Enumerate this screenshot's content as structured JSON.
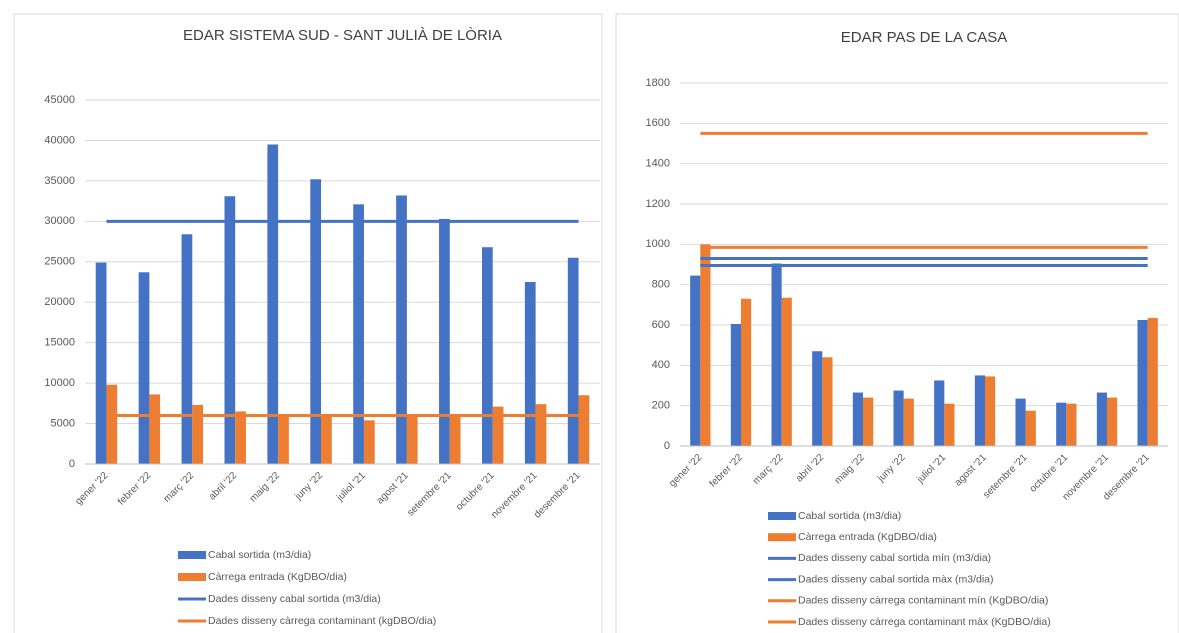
{
  "chart_data": [
    {
      "type": "bar",
      "title": "EDAR SISTEMA SUD - SANT JULIÀ DE LÒRIA",
      "categories": [
        "gener '22",
        "febrer '22",
        "març '22",
        "abril '22",
        "maig '22",
        "juny '22",
        "juliol '21",
        "agost '21",
        "setembre '21",
        "octubre '21",
        "novembre '21",
        "desembre '21"
      ],
      "series": [
        {
          "name": "Cabal sortida (m3/dia)",
          "kind": "bar",
          "color": "#4472c4",
          "values": [
            24900,
            23700,
            28400,
            33100,
            39500,
            35200,
            32100,
            33200,
            30300,
            26800,
            22500,
            25500
          ]
        },
        {
          "name": "Càrrega entrada (KgDBO/dia)",
          "kind": "bar",
          "color": "#ed7d31",
          "values": [
            9800,
            8600,
            7300,
            6500,
            6000,
            6000,
            5400,
            6000,
            6000,
            7100,
            7400,
            8500
          ]
        },
        {
          "name": "Dades disseny cabal sortida (m3/dia)",
          "kind": "line",
          "color": "#4472c4",
          "values": [
            30000,
            30000,
            30000,
            30000,
            30000,
            30000,
            30000,
            30000,
            30000,
            30000,
            30000,
            30000
          ]
        },
        {
          "name": "Dades disseny càrrega contaminant (kgDBO/dia)",
          "kind": "line",
          "color": "#ed7d31",
          "values": [
            6000,
            6000,
            6000,
            6000,
            6000,
            6000,
            6000,
            6000,
            6000,
            6000,
            6000,
            6000
          ]
        }
      ],
      "ylim": [
        0,
        45000
      ],
      "yticks": [
        0,
        5000,
        10000,
        15000,
        20000,
        25000,
        30000,
        35000,
        40000,
        45000
      ],
      "grid": true
    },
    {
      "type": "bar",
      "title": "EDAR PAS DE LA CASA",
      "categories": [
        "gener '22",
        "febrer '22",
        "març '22",
        "abril '22",
        "maig '22",
        "juny '22",
        "juliol '21",
        "agost '21",
        "setembre '21",
        "octubre '21",
        "novembre '21",
        "desembre '21"
      ],
      "series": [
        {
          "name": "Cabal sortida (m3/dia)",
          "kind": "bar",
          "color": "#4472c4",
          "values": [
            845,
            605,
            905,
            470,
            265,
            275,
            325,
            350,
            235,
            215,
            265,
            625
          ]
        },
        {
          "name": "Càrrega entrada (KgDBO/dia)",
          "kind": "bar",
          "color": "#ed7d31",
          "values": [
            1000,
            730,
            735,
            440,
            240,
            235,
            210,
            345,
            175,
            210,
            240,
            635
          ]
        },
        {
          "name": "Dades disseny cabal sortida mín (m3/dia)",
          "kind": "line",
          "color": "#4472c4",
          "values": [
            895,
            895,
            895,
            895,
            895,
            895,
            895,
            895,
            895,
            895,
            895,
            895
          ]
        },
        {
          "name": "Dades disseny cabal sortida màx (m3/dia)",
          "kind": "line",
          "color": "#4472c4",
          "values": [
            930,
            930,
            930,
            930,
            930,
            930,
            930,
            930,
            930,
            930,
            930,
            930
          ]
        },
        {
          "name": "Dades disseny càrrega contaminant mín (KgDBO/dia)",
          "kind": "line",
          "color": "#ed7d31",
          "values": [
            985,
            985,
            985,
            985,
            985,
            985,
            985,
            985,
            985,
            985,
            985,
            985
          ]
        },
        {
          "name": "Dades disseny càrrega contaminant màx (KgDBO/dia)",
          "kind": "line",
          "color": "#ed7d31",
          "values": [
            1550,
            1550,
            1550,
            1550,
            1550,
            1550,
            1550,
            1550,
            1550,
            1550,
            1550,
            1550
          ]
        }
      ],
      "ylim": [
        0,
        1800
      ],
      "yticks": [
        0,
        200,
        400,
        600,
        800,
        1000,
        1200,
        1400,
        1600,
        1800
      ],
      "grid": true
    }
  ]
}
